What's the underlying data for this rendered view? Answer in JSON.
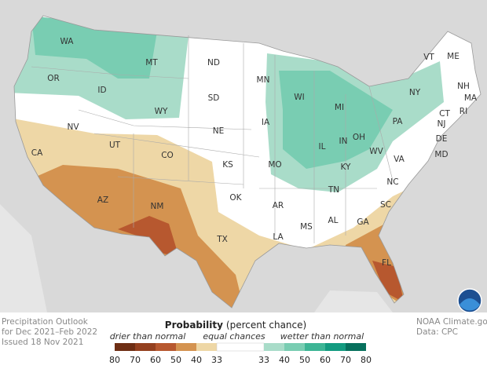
{
  "map": {
    "states": [
      "WA",
      "OR",
      "ID",
      "MT",
      "WY",
      "ND",
      "SD",
      "NE",
      "NV",
      "UT",
      "CO",
      "KS",
      "CA",
      "AZ",
      "NM",
      "OK",
      "TX",
      "MN",
      "WI",
      "IA",
      "MO",
      "AR",
      "LA",
      "MS",
      "AL",
      "IL",
      "IN",
      "MI",
      "OH",
      "KY",
      "TN",
      "WV",
      "VA",
      "NC",
      "SC",
      "GA",
      "FL",
      "PA",
      "NY",
      "VT",
      "ME",
      "NH",
      "MA",
      "RI",
      "CT",
      "NJ",
      "DE",
      "MD"
    ]
  },
  "footer": {
    "left": [
      "Precipitation Outlook",
      "for Dec 2021–Feb 2022",
      "Issued 18 Nov 2021"
    ],
    "right": [
      "NOAA Climate.gov",
      "Data: CPC"
    ]
  },
  "legend": {
    "title": "Probability",
    "subtitle": "(percent chance)",
    "drier_label": "drier than normal",
    "equal_label": "equal chances",
    "wetter_label": "wetter than normal",
    "dry_ticks": [
      80,
      70,
      60,
      50,
      40,
      33
    ],
    "wet_ticks": [
      33,
      40,
      50,
      60,
      70,
      80
    ],
    "dry_colors": [
      "#6e2e14",
      "#94401f",
      "#b7582f",
      "#d49350",
      "#eed7a6"
    ],
    "equal_color": "#ffffff",
    "wet_colors": [
      "#a9dcc9",
      "#79cdb2",
      "#3db595",
      "#139b80",
      "#07705d"
    ]
  }
}
